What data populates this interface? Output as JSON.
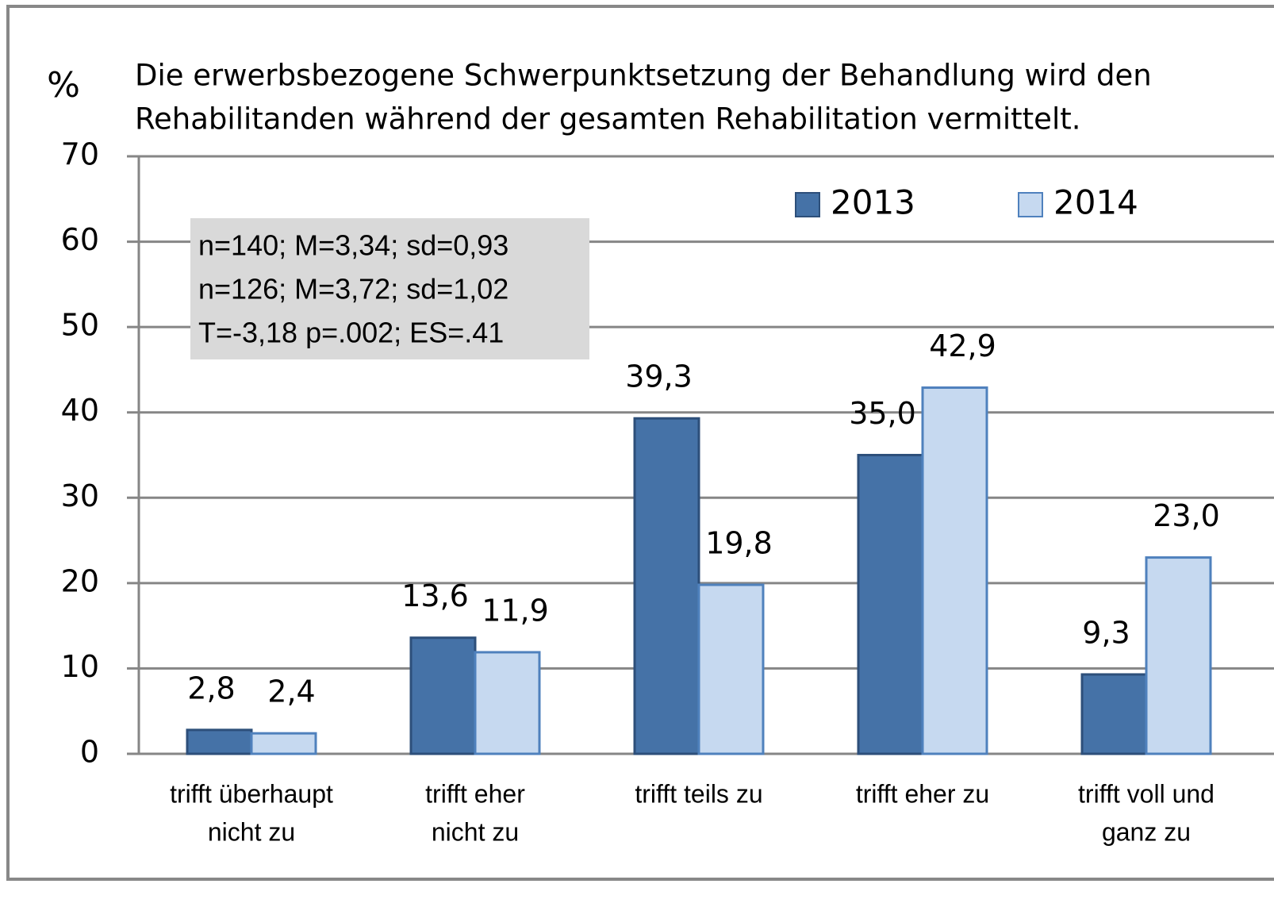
{
  "chart_data": {
    "type": "bar",
    "title": [
      "Die erwerbsbezogene Schwerpunktsetzung der Behandlung wird den",
      "Rehabilitanden während der gesamten Rehabilitation vermittelt."
    ],
    "y_label": "%",
    "annotation": [
      "n=140; M=3,34; sd=0,93",
      "n=126; M=3,72; sd=1,02",
      "T=-3,18  p=.002; ES=.41"
    ],
    "categories": [
      [
        "trifft überhaupt",
        "nicht zu"
      ],
      [
        "trifft  eher",
        "nicht zu"
      ],
      [
        "trifft teils zu"
      ],
      [
        "trifft eher zu"
      ],
      [
        "trifft voll und",
        "ganz zu"
      ]
    ],
    "series": [
      {
        "name": "2013",
        "color": "#4572a7",
        "values": [
          2.8,
          13.6,
          39.3,
          35.0,
          9.3
        ],
        "value_labels": [
          "2,8",
          "13,6",
          "39,3",
          "35,0",
          "9,3"
        ]
      },
      {
        "name": "2014",
        "color": "#c6d9f0",
        "values": [
          2.4,
          11.9,
          19.8,
          42.9,
          23.0
        ],
        "value_labels": [
          "2,4",
          "11,9",
          "19,8",
          "42,9",
          "23,0"
        ]
      }
    ],
    "ylim": [
      0,
      70
    ],
    "yticks": [
      0,
      10,
      20,
      30,
      40,
      50,
      60,
      70
    ],
    "grid": true,
    "legend": "top-right"
  }
}
